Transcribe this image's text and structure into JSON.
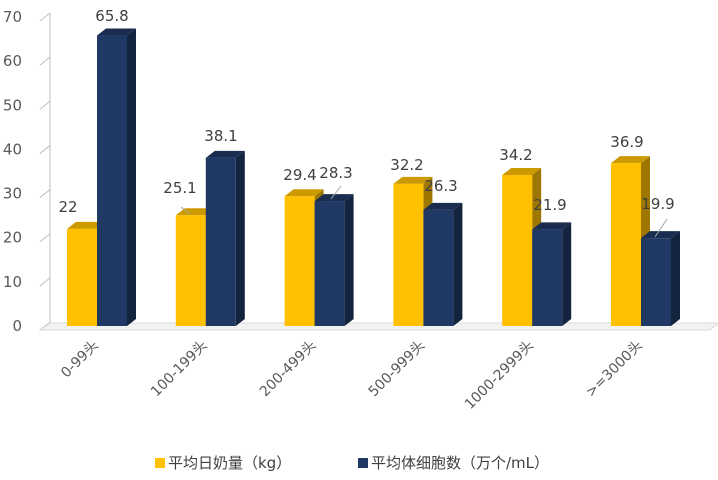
{
  "chart_data": {
    "type": "bar",
    "categories": [
      "0-99头",
      "100-199头",
      "200-499头",
      "500-999头",
      "1000-2999头",
      ">=3000头"
    ],
    "series": [
      {
        "name": "平均日奶量（kg）",
        "values": [
          22,
          25.1,
          29.4,
          32.2,
          34.2,
          36.9
        ],
        "color": "#ffc000"
      },
      {
        "name": "平均体细胞数（万个/mL）",
        "values": [
          65.8,
          38.1,
          28.3,
          26.3,
          21.9,
          19.9
        ],
        "color": "#203864"
      }
    ],
    "data_labels": [
      [
        "22",
        "25.1",
        "29.4",
        "32.2",
        "34.2",
        "36.9"
      ],
      [
        "65.8",
        "38.1",
        "28.3",
        "26.3",
        "21.9",
        "19.9"
      ]
    ],
    "y_ticks": [
      "0",
      "10",
      "20",
      "30",
      "40",
      "50",
      "60",
      "70"
    ],
    "ylim": [
      0,
      70
    ],
    "legend_position": "bottom",
    "style": "3d-clustered-column"
  }
}
